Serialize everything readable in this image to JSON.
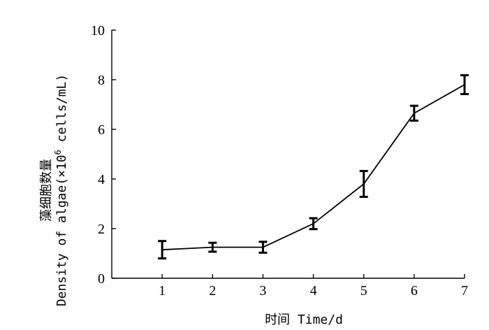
{
  "chart_data": {
    "type": "line",
    "xlabel": "时间 Time/d",
    "ylabel_line1": "藻细胞数量",
    "ylabel_line2_prefix": "Density of algae(×10",
    "ylabel_line2_sup": "6",
    "ylabel_line2_suffix": " cells/mL)",
    "xlim": [
      0,
      7
    ],
    "ylim": [
      0,
      10
    ],
    "x_ticks": [
      1,
      2,
      3,
      4,
      5,
      6,
      7
    ],
    "y_ticks": [
      0,
      2,
      4,
      6,
      8,
      10
    ],
    "grid": false,
    "series": [
      {
        "x": [
          1,
          2,
          3,
          4,
          5,
          6,
          7
        ],
        "y": [
          1.15,
          1.25,
          1.25,
          2.2,
          3.8,
          6.65,
          7.8
        ],
        "error": [
          0.35,
          0.18,
          0.22,
          0.22,
          0.52,
          0.3,
          0.38
        ]
      }
    ]
  }
}
